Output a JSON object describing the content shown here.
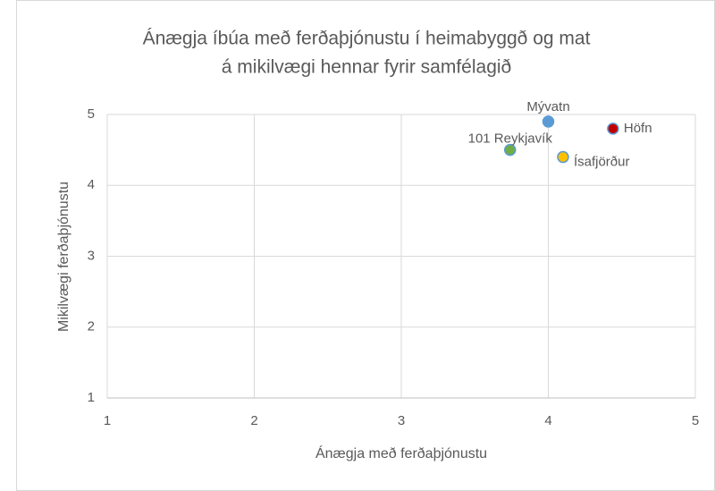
{
  "chart_data": {
    "type": "scatter",
    "title": [
      "Ánægja íbúa með ferðaþjónustu í heimabyggð og mat",
      "á mikilvægi hennar fyrir samfélagið"
    ],
    "x_label": "Ánægja með ferðaþjónustu",
    "y_label": "Mikilvægi ferðaþjónustu",
    "series": [
      {
        "name": "Mývatn",
        "color": "#5b9bd5",
        "x": [
          4.0
        ],
        "values": [
          4.9
        ]
      },
      {
        "name": "Höfn",
        "color": "#c00000",
        "x": [
          4.44
        ],
        "values": [
          4.8
        ]
      },
      {
        "name": "Ísafjörður",
        "color": "#ffc000",
        "x": [
          4.1
        ],
        "values": [
          4.4
        ]
      },
      {
        "name": "101 Reykjavík",
        "color": "#70ad47",
        "x": [
          3.74
        ],
        "values": [
          4.5
        ]
      }
    ],
    "xlim": [
      1,
      5
    ],
    "xticks": [
      1,
      2,
      3,
      4,
      5
    ],
    "ylim": [
      1,
      5
    ],
    "yticks": [
      1,
      2,
      3,
      4,
      5
    ],
    "grid": true
  }
}
